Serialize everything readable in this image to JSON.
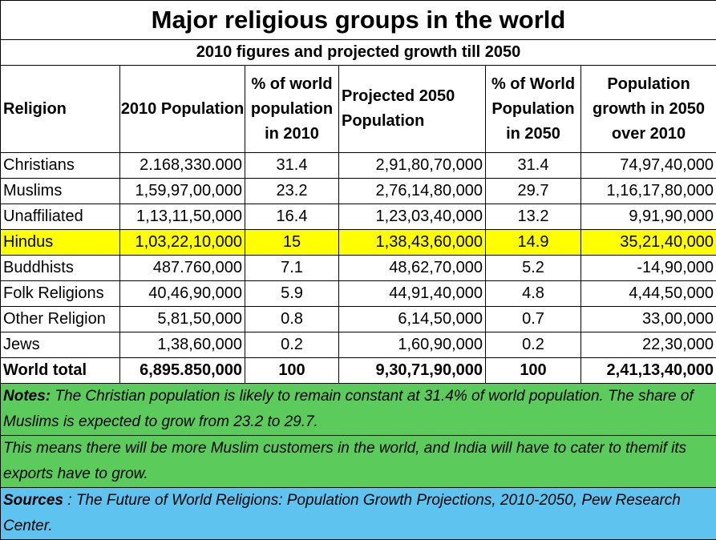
{
  "title": "Major religious groups in the world",
  "subtitle": "2010 figures and projected growth till 2050",
  "headers": {
    "religion": "Religion",
    "pop2010": "2010 Population",
    "pct2010": "% of world population in 2010",
    "proj2050": "Projected  2050 Population",
    "pct2050": "% of World Population in 2050",
    "growth": "Population growth in 2050 over 2010"
  },
  "rows": [
    {
      "religion": "Christians",
      "pop2010": "2.168,330.000",
      "pct2010": "31.4",
      "proj2050": "2,91,80,70,000",
      "pct2050": "31.4",
      "growth": "74,97,40,000"
    },
    {
      "religion": "Muslims",
      "pop2010": "1,59,97,00,000",
      "pct2010": "23.2",
      "proj2050": "2,76,14,80,000",
      "pct2050": "29.7",
      "growth": "1,16,17,80,000"
    },
    {
      "religion": "Unaffiliated",
      "pop2010": "1,13,11,50,000",
      "pct2010": "16.4",
      "proj2050": "1,23,03,40,000",
      "pct2050": "13.2",
      "growth": "9,91,90,000"
    },
    {
      "religion": "Hindus",
      "pop2010": "1,03,22,10,000",
      "pct2010": "15",
      "proj2050": "1,38,43,60,000",
      "pct2050": "14.9",
      "growth": "35,21,40,000"
    },
    {
      "religion": "Buddhists",
      "pop2010": "487.760,000",
      "pct2010": "7.1",
      "proj2050": "48,62,70,000",
      "pct2050": "5.2",
      "growth": "-14,90,000"
    },
    {
      "religion": "Folk Religions",
      "pop2010": "40,46,90,000",
      "pct2010": "5.9",
      "proj2050": "44,91,40,000",
      "pct2050": "4.8",
      "growth": "4,44,50,000"
    },
    {
      "religion": "Other Religion",
      "pop2010": "5,81,50,000",
      "pct2010": "0.8",
      "proj2050": "6,14,50,000",
      "pct2050": "0.7",
      "growth": "33,00,000"
    },
    {
      "religion": "Jews",
      "pop2010": "1,38,60,000",
      "pct2010": "0.2",
      "proj2050": "1,60,90,000",
      "pct2050": "0.2",
      "growth": "22,30,000"
    }
  ],
  "total": {
    "religion": "World total",
    "pop2010": "6,895.850,000",
    "pct2010": "100",
    "proj2050": "9,30,71,90,000",
    "pct2050": "100",
    "growth": "2,41,13,40,000"
  },
  "notes": {
    "label": "Notes:",
    "text1": "  The Christian population is likely to remain constant at 31.4% of world population. The share of Muslims is expected to grow from 23.2 to 29.7.",
    "text2": "This means there will be more Muslim customers in the world, and India will have to cater to themif its exports have to grow."
  },
  "sources": {
    "label": "Sources",
    "text": " : The Future of World Religions: Population Growth Projections, 2010-2050,  Pew Research Center."
  },
  "colors": {
    "highlight": "#ffff00",
    "notes_bg": "#5bcb5b",
    "sources_bg": "#5ec3ee"
  }
}
